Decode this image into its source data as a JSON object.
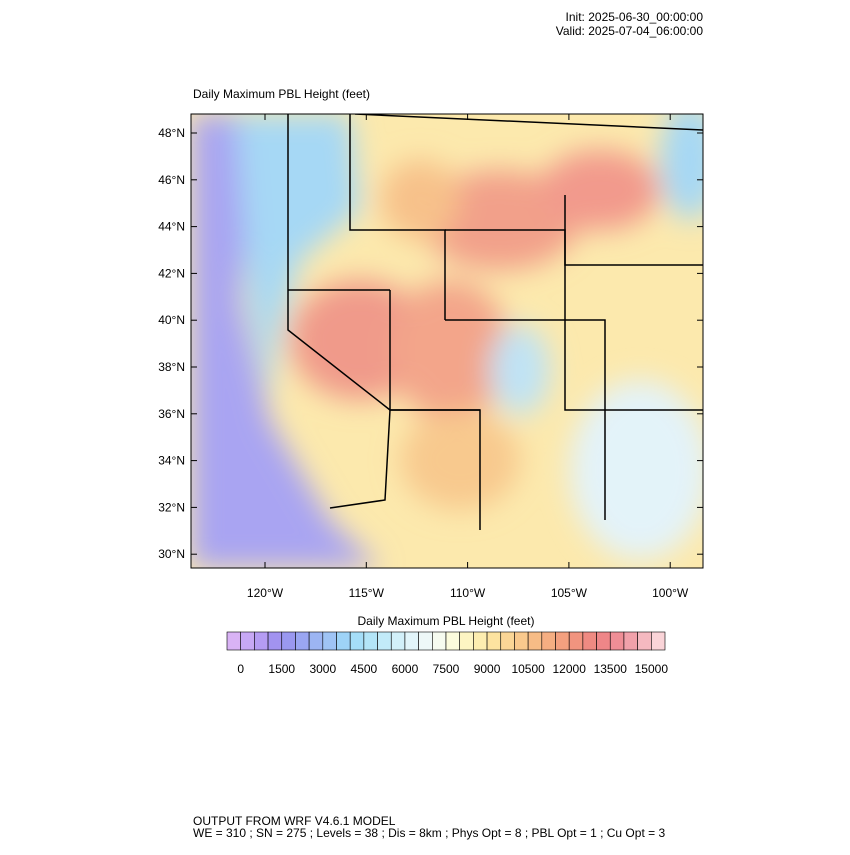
{
  "header": {
    "init": "Init: 2025-06-30_00:00:00",
    "valid": "Valid: 2025-07-04_06:00:00"
  },
  "map": {
    "title": "Daily Maximum PBL Height   (feet)",
    "lat_labels": [
      "48°N",
      "46°N",
      "44°N",
      "42°N",
      "40°N",
      "38°N",
      "36°N",
      "34°N",
      "32°N",
      "30°N"
    ],
    "lon_labels": [
      "120°W",
      "115°W",
      "110°W",
      "105°W",
      "100°W"
    ]
  },
  "colorbar": {
    "title": "Daily Maximum PBL Height  (feet)",
    "labels": [
      0,
      1500,
      3000,
      4500,
      6000,
      7500,
      9000,
      10500,
      12000,
      13500,
      15000
    ],
    "colors": [
      "#d9b3f5",
      "#c7a8f5",
      "#b59cf3",
      "#a293f0",
      "#9a98f0",
      "#9aa6f2",
      "#9cb5f3",
      "#9fc4f5",
      "#9ed3f7",
      "#a5def8",
      "#b3e5f8",
      "#c2ebf9",
      "#d2f0f9",
      "#e2f5fa",
      "#eef8f8",
      "#f6fbf0",
      "#fbfbdd",
      "#fdf5c3",
      "#fdedb0",
      "#fde3a0",
      "#fbd696",
      "#f9c98d",
      "#f7bc86",
      "#f5ae82",
      "#f3a07f",
      "#f1947f",
      "#ef8a82",
      "#ee8688",
      "#ef8e96",
      "#f1a1aa",
      "#f5b9c0",
      "#fad4d8"
    ]
  },
  "footer": {
    "line1": "OUTPUT FROM WRF V4.6.1 MODEL",
    "line2": "WE = 310 ; SN = 275 ; Levels = 38 ; Dis = 8km ; Phys Opt = 8 ; PBL Opt = 1 ; Cu Opt = 3"
  }
}
